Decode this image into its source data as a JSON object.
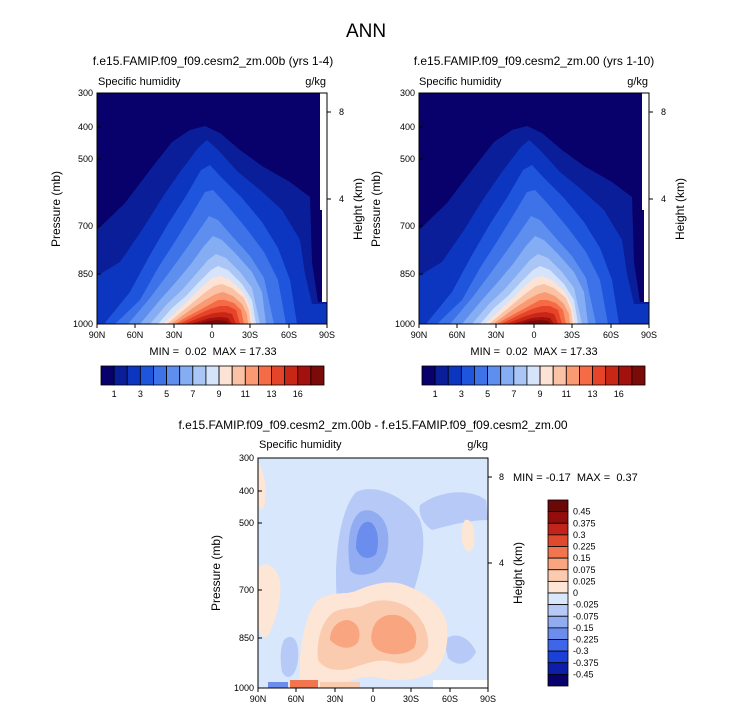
{
  "page_title": "ANN",
  "chart_data": [
    {
      "type": "heatmap",
      "title": "f.e15.FAMIP.f09_f09.cesm2_zm.00b (yrs 1-4)",
      "variable": "Specific humidity",
      "units": "g/kg",
      "xlabel": "",
      "ylabel": "Pressure (mb)",
      "ylabel_right": "Height (km)",
      "x_ticks": [
        "90N",
        "60N",
        "30N",
        "0",
        "30S",
        "60S",
        "90S"
      ],
      "y_ticks": [
        "300",
        "400",
        "500",
        "700",
        "850",
        "1000"
      ],
      "right_ticks": [
        "8",
        "4"
      ],
      "stats": "MIN =  0.02  MAX = 17.33",
      "min": 0.02,
      "max": 17.33,
      "levels": [
        1,
        2,
        3,
        4,
        5,
        6,
        7,
        8,
        9,
        10,
        11,
        12,
        13,
        14,
        15,
        16
      ],
      "colorbar_labels": [
        "1",
        "3",
        "5",
        "7",
        "9",
        "11",
        "13",
        "16"
      ]
    },
    {
      "type": "heatmap",
      "title": "f.e15.FAMIP.f09_f09.cesm2_zm.00 (yrs 1-10)",
      "variable": "Specific humidity",
      "units": "g/kg",
      "xlabel": "",
      "ylabel": "Pressure (mb)",
      "ylabel_right": "Height (km)",
      "x_ticks": [
        "90N",
        "60N",
        "30N",
        "0",
        "30S",
        "60S",
        "90S"
      ],
      "y_ticks": [
        "300",
        "400",
        "500",
        "700",
        "850",
        "1000"
      ],
      "right_ticks": [
        "8",
        "4"
      ],
      "stats": "MIN =  0.02  MAX = 17.33",
      "min": 0.02,
      "max": 17.33,
      "levels": [
        1,
        2,
        3,
        4,
        5,
        6,
        7,
        8,
        9,
        10,
        11,
        12,
        13,
        14,
        15,
        16
      ],
      "colorbar_labels": [
        "1",
        "3",
        "5",
        "7",
        "9",
        "11",
        "13",
        "16"
      ]
    },
    {
      "type": "heatmap",
      "title": "f.e15.FAMIP.f09_f09.cesm2_zm.00b - f.e15.FAMIP.f09_f09.cesm2_zm.00",
      "variable": "Specific humidity",
      "units": "g/kg",
      "xlabel": "",
      "ylabel": "Pressure (mb)",
      "ylabel_right": "Height (km)",
      "x_ticks": [
        "90N",
        "60N",
        "30N",
        "0",
        "30S",
        "60S",
        "90S"
      ],
      "y_ticks": [
        "300",
        "400",
        "500",
        "700",
        "850",
        "1000"
      ],
      "right_ticks": [
        "8",
        "4"
      ],
      "stats": "MIN = -0.17  MAX =  0.37",
      "min": -0.17,
      "max": 0.37,
      "levels": [
        -0.45,
        -0.375,
        -0.3,
        -0.225,
        -0.15,
        -0.075,
        -0.025,
        0,
        0.025,
        0.075,
        0.15,
        0.225,
        0.3,
        0.375,
        0.45
      ],
      "colorbar_labels": [
        "0.45",
        "0.375",
        "0.3",
        "0.225",
        "0.15",
        "0.075",
        "0.025",
        "0",
        "-0.025",
        "-0.075",
        "-0.15",
        "-0.225",
        "-0.3",
        "-0.375",
        "-0.45"
      ]
    }
  ],
  "colors": {
    "seq": [
      "#08006b",
      "#0a1e9a",
      "#0d36c0",
      "#1f55dc",
      "#3d72e8",
      "#5e8fef",
      "#85adf3",
      "#aac6f6",
      "#d5e4fa",
      "#fde3d5",
      "#fbc3a6",
      "#f99a73",
      "#f46b45",
      "#e5432a",
      "#c92716",
      "#a3110e",
      "#7b0b09"
    ],
    "div": [
      "#08006b",
      "#0d1fa8",
      "#1c3fd6",
      "#3f66e8",
      "#6b8ded",
      "#92acf2",
      "#b7c9f7",
      "#d8e7fb",
      "#fde6d6",
      "#fbcbb0",
      "#f8a580",
      "#f17650",
      "#e04a2c",
      "#c0241a",
      "#920d0c",
      "#6a0808"
    ]
  }
}
